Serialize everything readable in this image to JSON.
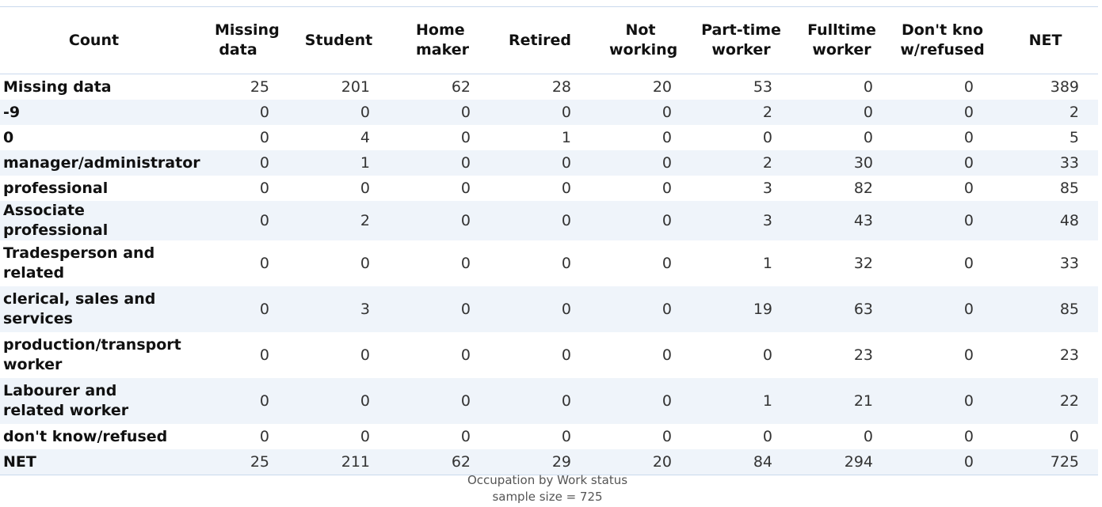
{
  "chart_data": {
    "type": "table",
    "corner_label": "Count",
    "columns": [
      "Missing data",
      "Student",
      "Home maker",
      "Retired",
      "Not working",
      "Part-time worker",
      "Fulltime worker",
      "Don't know/refused",
      "NET"
    ],
    "rows": [
      {
        "label": "Missing data",
        "values": [
          25,
          201,
          62,
          28,
          20,
          53,
          0,
          0,
          389
        ]
      },
      {
        "label": "-9",
        "values": [
          0,
          0,
          0,
          0,
          0,
          2,
          0,
          0,
          2
        ]
      },
      {
        "label": "0",
        "values": [
          0,
          4,
          0,
          1,
          0,
          0,
          0,
          0,
          5
        ]
      },
      {
        "label": "manager/administrator",
        "values": [
          0,
          1,
          0,
          0,
          0,
          2,
          30,
          0,
          33
        ]
      },
      {
        "label": "professional",
        "values": [
          0,
          0,
          0,
          0,
          0,
          3,
          82,
          0,
          85
        ]
      },
      {
        "label": "Associate professional",
        "values": [
          0,
          2,
          0,
          0,
          0,
          3,
          43,
          0,
          48
        ]
      },
      {
        "label": "Tradesperson and related",
        "values": [
          0,
          0,
          0,
          0,
          0,
          1,
          32,
          0,
          33
        ]
      },
      {
        "label": "clerical, sales and services",
        "values": [
          0,
          3,
          0,
          0,
          0,
          19,
          63,
          0,
          85
        ]
      },
      {
        "label": "production/transport worker",
        "values": [
          0,
          0,
          0,
          0,
          0,
          0,
          23,
          0,
          23
        ]
      },
      {
        "label": "Labourer and related worker",
        "values": [
          0,
          0,
          0,
          0,
          0,
          1,
          21,
          0,
          22
        ]
      },
      {
        "label": "don't know/refused",
        "values": [
          0,
          0,
          0,
          0,
          0,
          0,
          0,
          0,
          0
        ]
      },
      {
        "label": "NET",
        "values": [
          25,
          211,
          62,
          29,
          20,
          84,
          294,
          0,
          725
        ]
      }
    ],
    "title": "Occupation by Work status",
    "subtitle": "sample size = 725"
  },
  "colors": {
    "header_rule": "#c9d9ec",
    "alt_row": "#eff4fa"
  }
}
